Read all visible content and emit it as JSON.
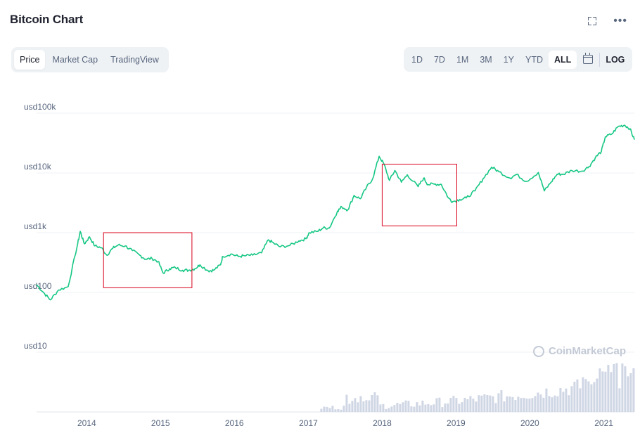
{
  "header": {
    "title": "Bitcoin Chart",
    "fullscreen_icon": "fullscreen-icon",
    "more_icon": "more-icon",
    "more_label": "•••"
  },
  "tabs": [
    {
      "label": "Price",
      "active": true
    },
    {
      "label": "Market Cap",
      "active": false
    },
    {
      "label": "TradingView",
      "active": false
    }
  ],
  "ranges": [
    {
      "label": "1D",
      "active": false
    },
    {
      "label": "7D",
      "active": false
    },
    {
      "label": "1M",
      "active": false
    },
    {
      "label": "3M",
      "active": false
    },
    {
      "label": "1Y",
      "active": false
    },
    {
      "label": "YTD",
      "active": false
    },
    {
      "label": "ALL",
      "active": true
    }
  ],
  "calendar_icon": "calendar-icon",
  "log_label": "LOG",
  "watermark": "CoinMarketCap",
  "colors": {
    "line": "#16c784",
    "grid": "#eff2f5",
    "highlight_box": "#d9001b",
    "volume": "#cfd6e4",
    "axis_text": "#58667e"
  },
  "chart_data": {
    "type": "line",
    "yscale": "log",
    "ylim": [
      10,
      100000
    ],
    "xlim": [
      "2013-04-28",
      "2021-06-01"
    ],
    "ytick_labels": [
      {
        "value": 100000,
        "label": "usd100k"
      },
      {
        "value": 10000,
        "label": "usd10k"
      },
      {
        "value": 1000,
        "label": "usd1k"
      },
      {
        "value": 100,
        "label": "usd100"
      },
      {
        "value": 10,
        "label": "usd10"
      }
    ],
    "xtick_labels": [
      "2014",
      "2015",
      "2016",
      "2017",
      "2018",
      "2019",
      "2020",
      "2021"
    ],
    "grid": true,
    "series": [
      {
        "x": [
          "2013-04-28",
          "2013-06-01",
          "2013-07-05",
          "2013-08-15",
          "2013-10-01",
          "2013-11-15",
          "2013-11-30",
          "2013-12-20",
          "2014-01-15",
          "2014-02-10",
          "2014-03-15",
          "2014-04-10",
          "2014-05-10",
          "2014-06-05",
          "2014-07-10",
          "2014-08-15",
          "2014-09-20",
          "2014-10-20",
          "2014-11-20",
          "2014-12-20",
          "2015-01-14",
          "2015-02-15",
          "2015-03-15",
          "2015-04-20",
          "2015-05-20",
          "2015-06-20",
          "2015-07-15",
          "2015-08-25",
          "2015-09-20",
          "2015-10-25",
          "2015-11-04",
          "2015-12-15",
          "2016-01-20",
          "2016-02-20",
          "2016-04-01",
          "2016-05-15",
          "2016-06-17",
          "2016-07-15",
          "2016-08-15",
          "2016-10-01",
          "2016-11-15",
          "2016-12-20",
          "2017-01-05",
          "2017-02-15",
          "2017-03-15",
          "2017-04-15",
          "2017-05-25",
          "2017-06-15",
          "2017-07-15",
          "2017-08-15",
          "2017-09-15",
          "2017-10-15",
          "2017-11-15",
          "2017-12-17",
          "2018-01-10",
          "2018-02-06",
          "2018-03-05",
          "2018-04-06",
          "2018-05-05",
          "2018-06-28",
          "2018-07-25",
          "2018-08-15",
          "2018-09-15",
          "2018-10-20",
          "2018-11-25",
          "2018-12-15",
          "2019-01-20",
          "2019-02-20",
          "2019-04-05",
          "2019-05-15",
          "2019-06-26",
          "2019-08-01",
          "2019-09-25",
          "2019-10-26",
          "2019-12-15",
          "2020-02-12",
          "2020-03-13",
          "2020-04-15",
          "2020-05-15",
          "2020-06-15",
          "2020-07-27",
          "2020-09-15",
          "2020-10-20",
          "2020-11-20",
          "2020-12-20",
          "2021-01-08",
          "2021-02-10",
          "2021-03-13",
          "2021-04-14",
          "2021-05-10",
          "2021-06-01"
        ],
        "values": [
          135,
          100,
          75,
          110,
          125,
          600,
          1050,
          650,
          850,
          600,
          560,
          420,
          550,
          620,
          600,
          500,
          420,
          360,
          370,
          330,
          210,
          250,
          260,
          235,
          235,
          250,
          290,
          230,
          235,
          290,
          400,
          440,
          400,
          410,
          420,
          460,
          760,
          660,
          580,
          610,
          730,
          790,
          1000,
          1050,
          1200,
          1200,
          2300,
          2700,
          2400,
          4200,
          3700,
          5700,
          8000,
          19000,
          14000,
          7500,
          11000,
          7000,
          9300,
          5900,
          8200,
          6400,
          6500,
          6450,
          3800,
          3300,
          3600,
          3800,
          5000,
          8000,
          12500,
          10500,
          8200,
          9400,
          7200,
          10200,
          5000,
          7000,
          9500,
          9500,
          11000,
          10700,
          12800,
          18000,
          23000,
          40000,
          45000,
          60000,
          63000,
          55000,
          36000
        ]
      }
    ],
    "volume_note": "volume bars at bottom",
    "annotations": [
      {
        "type": "box",
        "x0": "2014-03-25",
        "x1": "2015-06-05",
        "y_top": 1000,
        "y_bottom": 120
      },
      {
        "type": "box",
        "x0": "2018-01-01",
        "x1": "2019-01-05",
        "y_top": 14000,
        "y_bottom": 1300
      }
    ]
  }
}
